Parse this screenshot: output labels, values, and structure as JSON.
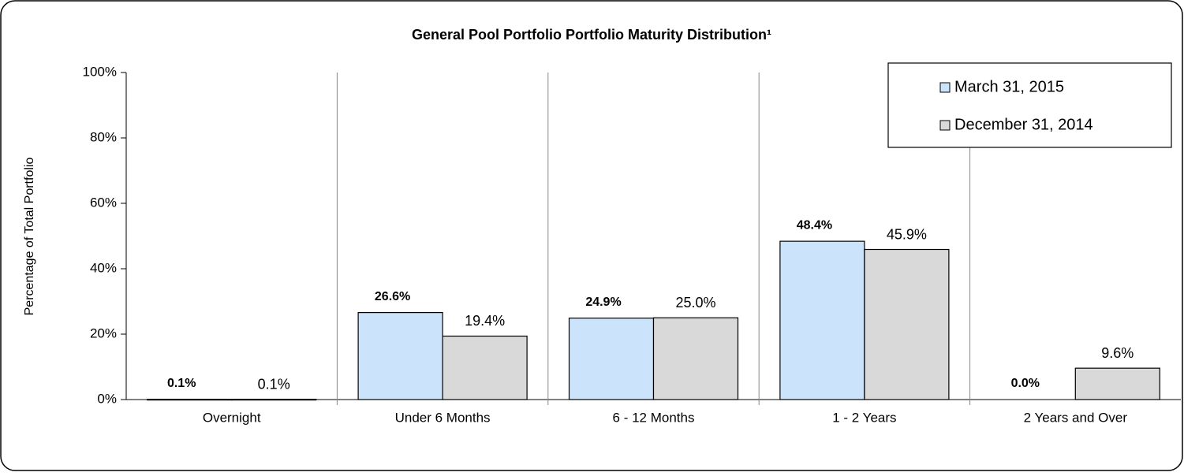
{
  "chart_data": {
    "type": "bar",
    "title": "General Pool Portfolio Portfolio Maturity Distribution¹",
    "y_label": "Percentage of Total Portfolio",
    "categories": [
      "Overnight",
      "Under 6 Months",
      "6 - 12 Months",
      "1 - 2 Years",
      "2 Years and Over"
    ],
    "series": [
      {
        "name": "March 31, 2015",
        "color": "#cce4fb",
        "values": [
          0.1,
          26.6,
          24.9,
          48.4,
          0.0
        ],
        "value_labels": [
          "0.1%",
          "26.6%",
          "24.9%",
          "48.4%",
          "0.0%"
        ]
      },
      {
        "name": "December 31, 2014",
        "color": "#d9d9d9",
        "values": [
          0.1,
          19.4,
          25.0,
          45.9,
          9.6
        ],
        "value_labels": [
          "0.1%",
          "19.4%",
          "25.0%",
          "45.9%",
          "9.6%"
        ]
      }
    ],
    "ylim": [
      0,
      100
    ],
    "yticks": [
      {
        "value": 0,
        "label": "0%"
      },
      {
        "value": 20,
        "label": "20%"
      },
      {
        "value": 40,
        "label": "40%"
      },
      {
        "value": 60,
        "label": "60%"
      },
      {
        "value": 80,
        "label": "80%"
      },
      {
        "value": 100,
        "label": "100%"
      }
    ],
    "grid": false,
    "legend": "top-right"
  }
}
